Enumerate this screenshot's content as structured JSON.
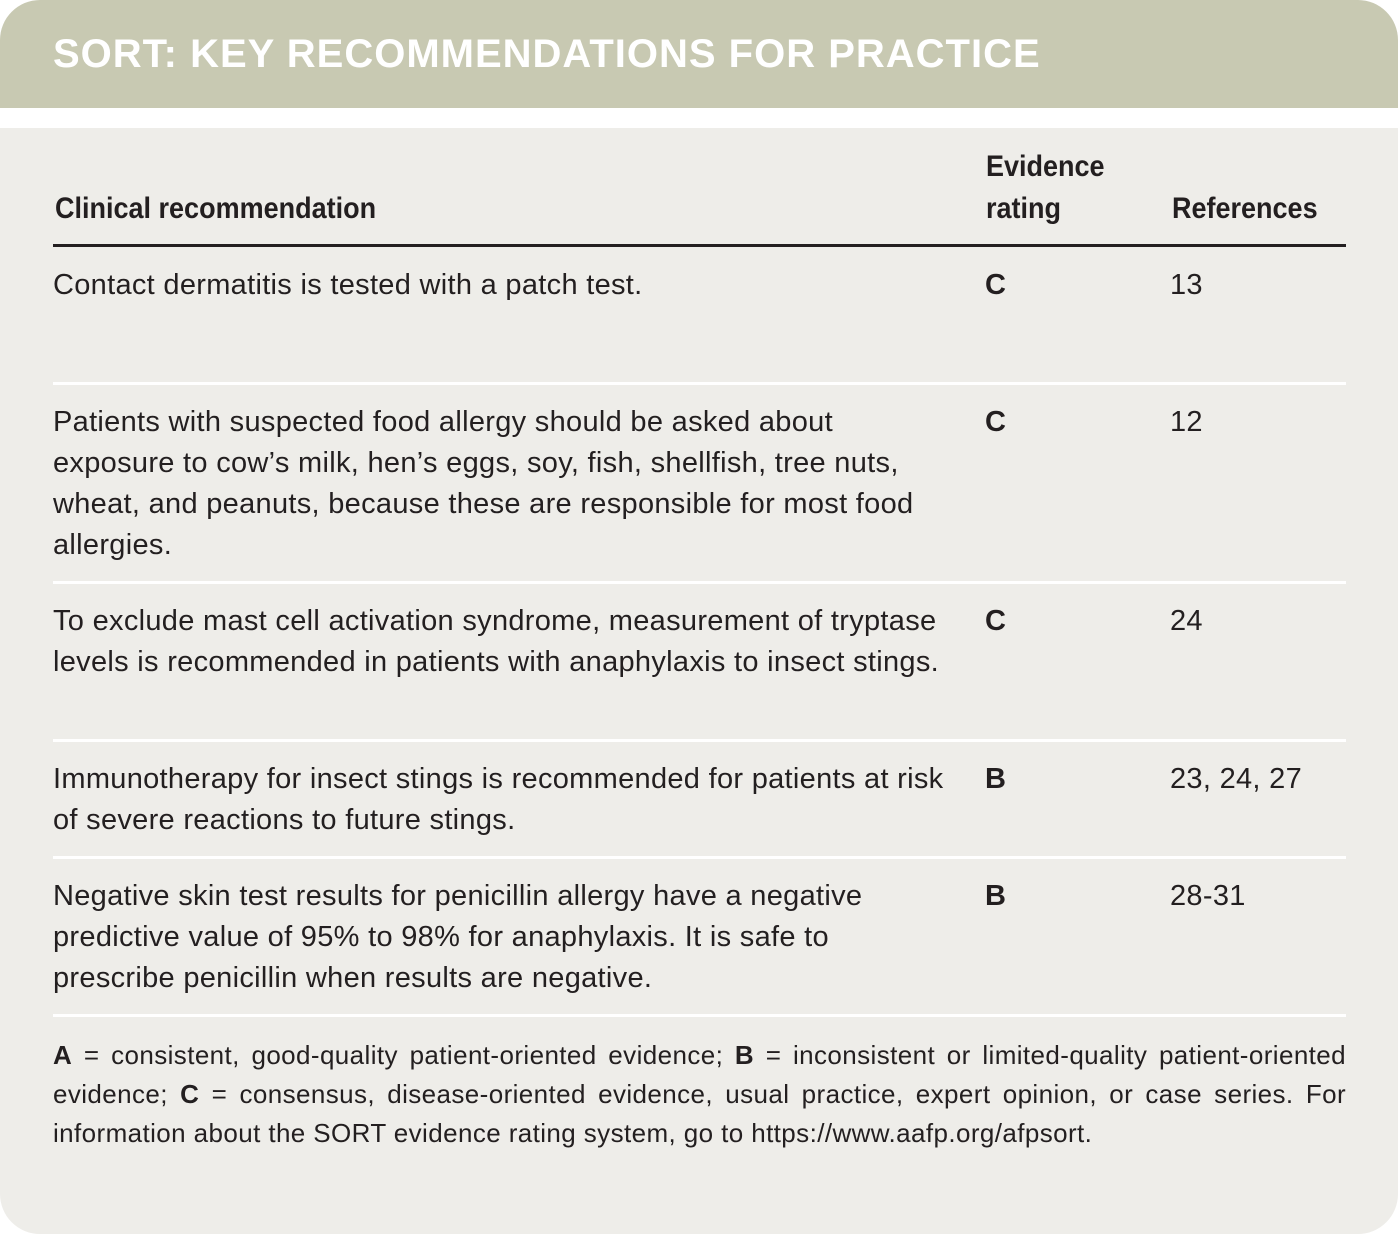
{
  "header": {
    "title": "SORT: KEY RECOMMENDATIONS FOR PRACTICE"
  },
  "table": {
    "columns": [
      "Clinical recommendation",
      "Evidence rating",
      "References"
    ],
    "rows": [
      [
        "Contact dermatitis is tested with a patch test.",
        "C",
        "13"
      ],
      [
        "Patients with suspected food allergy should be asked about exposure to cow’s milk, hen’s eggs, soy, fish, shellfish, tree nuts, wheat, and peanuts, because these are responsible for most food allergies.",
        "C",
        "12"
      ],
      [
        "To exclude mast cell activation syndrome, measurement of tryptase levels is recommended in patients with anaphylaxis to insect stings.",
        "C",
        "24"
      ],
      [
        "Immunotherapy for insect stings is recommended for patients at risk of severe reactions to future stings.",
        "B",
        "23, 24, 27"
      ],
      [
        "Negative skin test results for penicillin allergy have a negative predictive value of 95% to 98% for anaphylaxis. It is safe to prescribe penicillin when results are negative.",
        "B",
        "28-31"
      ]
    ]
  },
  "footnote": {
    "items": [
      {
        "key": "A",
        "text": "= consistent, good-quality patient-oriented evidence;"
      },
      {
        "key": "B",
        "text": "= inconsistent or limited-quality patient-oriented evidence;"
      },
      {
        "key": "C",
        "text": "= consensus, disease-oriented evidence, usual practice, expert opinion, or case series."
      }
    ],
    "note": "For information about the SORT evidence rating system, go to https://www.aafp.org/afpsort."
  }
}
